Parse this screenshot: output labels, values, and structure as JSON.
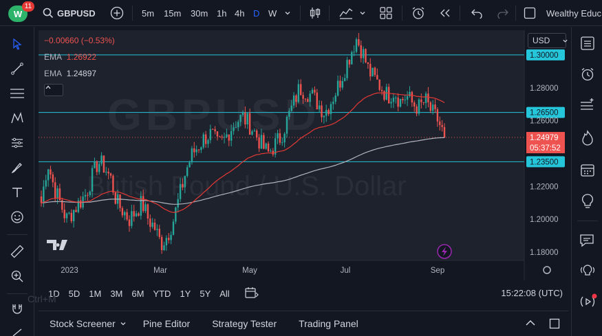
{
  "app": {
    "badge": "11",
    "logo_text": "W",
    "account": "Wealthy Educ"
  },
  "toolbar": {
    "symbol": "GBPUSD",
    "timeframes": [
      "5m",
      "15m",
      "30m",
      "1h",
      "4h",
      "D",
      "W"
    ],
    "active_timeframe": "D"
  },
  "legend": {
    "change": "−0.00660 (−0.53%)",
    "ema1_label": "EMA",
    "ema1_value": "1.26922",
    "ema2_label": "EMA",
    "ema2_value": "1.24897"
  },
  "currency_select": "USD",
  "watermark": {
    "symbol": "GBPUSD",
    "name": "British Pound / U.S. Dollar"
  },
  "price_axis": {
    "labels": [
      {
        "text": "1.30000",
        "highlight": true
      },
      {
        "text": "1.28000",
        "highlight": false
      },
      {
        "text": "1.26500",
        "highlight": true
      },
      {
        "text": "1.26000",
        "highlight": false
      },
      {
        "text": "1.24979",
        "highlight": "current"
      },
      {
        "text": "05:37:52",
        "highlight": "countdown"
      },
      {
        "text": "1.23500",
        "highlight": true
      },
      {
        "text": "1.22000",
        "highlight": false
      },
      {
        "text": "1.20000",
        "highlight": false
      },
      {
        "text": "1.18000",
        "highlight": false
      }
    ]
  },
  "time_axis": {
    "labels": [
      "2023",
      "Mar",
      "May",
      "Jul",
      "Sep"
    ]
  },
  "ranges": [
    "1D",
    "5D",
    "1M",
    "3M",
    "6M",
    "YTD",
    "1Y",
    "5Y",
    "All"
  ],
  "clock": "15:22:08 (UTC)",
  "bottom_tabs": [
    "Stock Screener",
    "Pine Editor",
    "Strategy Tester",
    "Trading Panel"
  ],
  "overlay_hint": "Ctrl+M",
  "colors": {
    "up": "#26a69a",
    "down": "#ef5350",
    "hline": "#26c6da",
    "ema_fast": "#e53935",
    "ema_slow": "#b2b5be",
    "accent": "#2962ff"
  },
  "chart_data": {
    "type": "candlestick",
    "x_ticks": [
      "2023",
      "Mar",
      "May",
      "Jul",
      "Sep"
    ],
    "ylim": [
      1.175,
      1.315
    ],
    "horizontal_lines": [
      1.3,
      1.265,
      1.235
    ],
    "current_price": 1.24979,
    "ema_fast_value": 1.26922,
    "ema_slow_value": 1.24897,
    "close_path": [
      1.21,
      1.235,
      1.22,
      1.21,
      1.2,
      1.205,
      1.21,
      1.215,
      1.225,
      1.235,
      1.232,
      1.225,
      1.21,
      1.205,
      1.2,
      1.205,
      1.21,
      1.2,
      1.195,
      1.185,
      1.19,
      1.2,
      1.215,
      1.23,
      1.24,
      1.245,
      1.25,
      1.252,
      1.245,
      1.248,
      1.255,
      1.26,
      1.262,
      1.258,
      1.252,
      1.245,
      1.24,
      1.245,
      1.25,
      1.26,
      1.27,
      1.28,
      1.278,
      1.275,
      1.27,
      1.265,
      1.272,
      1.28,
      1.29,
      1.3,
      1.31,
      1.302,
      1.29,
      1.285,
      1.28,
      1.275,
      1.278,
      1.272,
      1.275,
      1.27,
      1.268,
      1.272,
      1.265,
      1.26,
      1.25
    ]
  }
}
